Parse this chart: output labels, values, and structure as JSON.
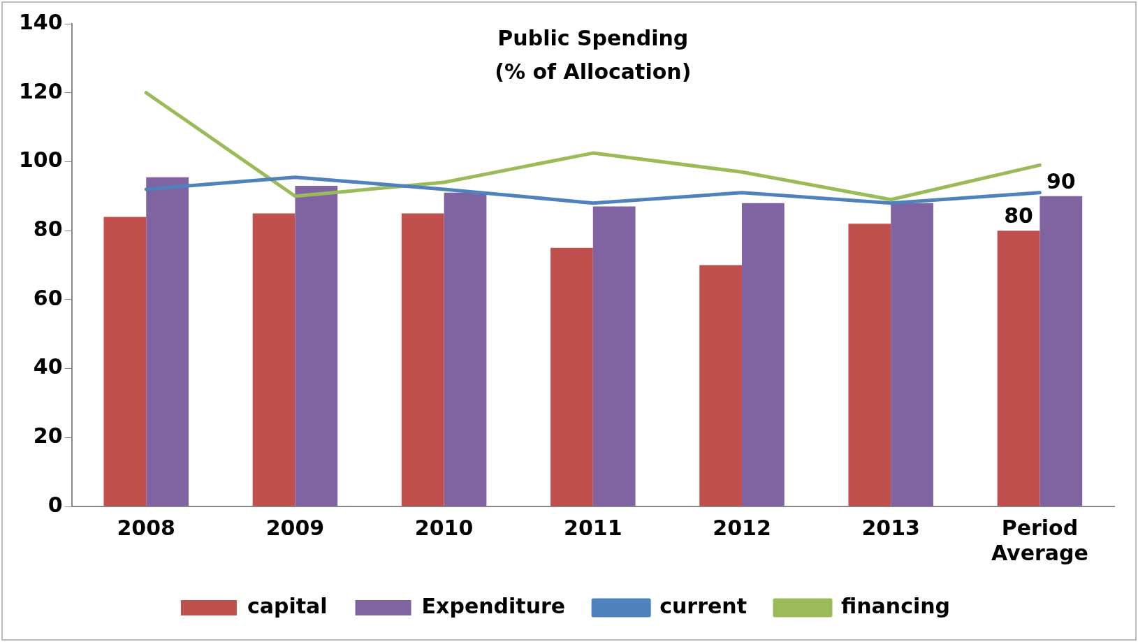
{
  "chart_data": {
    "type": "bar",
    "title": "Public Spending\n(% of Allocation)",
    "categories": [
      "2008",
      "2009",
      "2010",
      "2011",
      "2012",
      "2013",
      "Period\nAverage"
    ],
    "series": [
      {
        "name": "capital",
        "color": "#c0504d",
        "values": [
          84,
          85,
          85,
          75,
          70,
          82,
          80
        ],
        "value_labels": [
          null,
          null,
          null,
          null,
          null,
          null,
          "80"
        ]
      },
      {
        "name": "Expenditure",
        "color": "#8064a2",
        "values": [
          95.5,
          93,
          91,
          87,
          88,
          88,
          90
        ],
        "value_labels": [
          null,
          null,
          null,
          null,
          null,
          null,
          "90"
        ]
      },
      {
        "name": "current",
        "type": "line",
        "color": "#4f81bd",
        "values": [
          92,
          95.5,
          92,
          88,
          91,
          88,
          91
        ]
      },
      {
        "name": "financing",
        "type": "line",
        "color": "#9bbb59",
        "values": [
          120,
          90,
          94,
          102.5,
          97,
          89,
          99
        ]
      }
    ],
    "ylim": [
      0,
      140
    ],
    "yticks": [
      0,
      20,
      40,
      60,
      80,
      100,
      120,
      140
    ],
    "grid": false,
    "legend": "bottom",
    "marker": "none"
  }
}
